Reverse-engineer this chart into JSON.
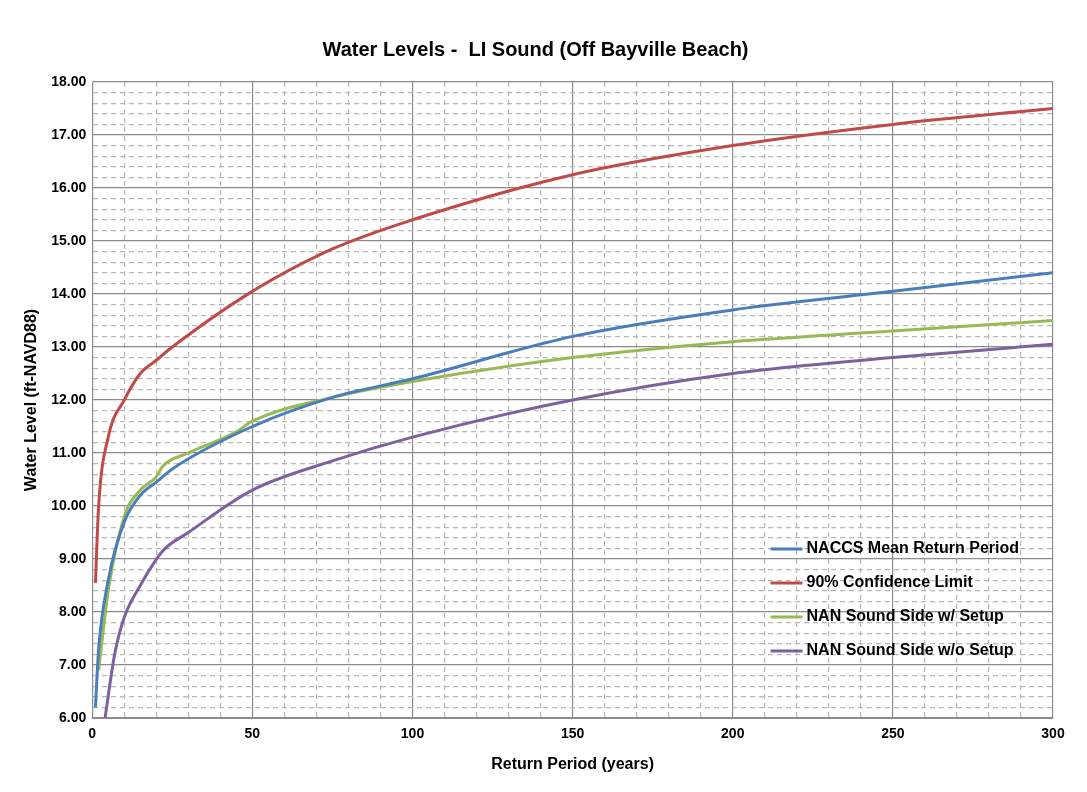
{
  "chart_data": {
    "type": "line",
    "title": "Water Levels -  LI Sound (Off Bayville Beach)",
    "xlabel": "Return Period (years)",
    "ylabel": "Water Level (ft-NAVD88)",
    "xlim": [
      0,
      300
    ],
    "ylim": [
      6,
      18
    ],
    "xticks": [
      0,
      {
        "value": 10,
        "label": null
      },
      {
        "value": 20,
        "label": null
      },
      {
        "value": 30,
        "label": null
      },
      {
        "value": 40,
        "label": null
      },
      50,
      {
        "value": 60,
        "label": null
      },
      {
        "value": 70,
        "label": null
      },
      {
        "value": 80,
        "label": null
      },
      {
        "value": 90,
        "label": null
      },
      100,
      {
        "value": 110,
        "label": null
      },
      {
        "value": 120,
        "label": null
      },
      {
        "value": 130,
        "label": null
      },
      {
        "value": 140,
        "label": null
      },
      150,
      {
        "value": 160,
        "label": null
      },
      {
        "value": 170,
        "label": null
      },
      {
        "value": 180,
        "label": null
      },
      {
        "value": 190,
        "label": null
      },
      200,
      {
        "value": 210,
        "label": null
      },
      {
        "value": 220,
        "label": null
      },
      {
        "value": 230,
        "label": null
      },
      {
        "value": 240,
        "label": null
      },
      250,
      {
        "value": 260,
        "label": null
      },
      {
        "value": 270,
        "label": null
      },
      {
        "value": 280,
        "label": null
      },
      {
        "value": 290,
        "label": null
      },
      300
    ],
    "yticks": [
      {
        "value": 6,
        "label": "6.00"
      },
      {
        "value": 6.2,
        "label": null
      },
      {
        "value": 6.4,
        "label": null
      },
      {
        "value": 6.6,
        "label": null
      },
      {
        "value": 6.8,
        "label": null
      },
      {
        "value": 7,
        "label": "7.00"
      },
      {
        "value": 7.2,
        "label": null
      },
      {
        "value": 7.4,
        "label": null
      },
      {
        "value": 7.6,
        "label": null
      },
      {
        "value": 7.8,
        "label": null
      },
      {
        "value": 8,
        "label": "8.00"
      },
      {
        "value": 8.2,
        "label": null
      },
      {
        "value": 8.4,
        "label": null
      },
      {
        "value": 8.6,
        "label": null
      },
      {
        "value": 8.8,
        "label": null
      },
      {
        "value": 9,
        "label": "9.00"
      },
      {
        "value": 9.2,
        "label": null
      },
      {
        "value": 9.4,
        "label": null
      },
      {
        "value": 9.6,
        "label": null
      },
      {
        "value": 9.8,
        "label": null
      },
      {
        "value": 10,
        "label": "10.00"
      },
      {
        "value": 10.2,
        "label": null
      },
      {
        "value": 10.4,
        "label": null
      },
      {
        "value": 10.6,
        "label": null
      },
      {
        "value": 10.8,
        "label": null
      },
      {
        "value": 11,
        "label": "11.00"
      },
      {
        "value": 11.2,
        "label": null
      },
      {
        "value": 11.4,
        "label": null
      },
      {
        "value": 11.6,
        "label": null
      },
      {
        "value": 11.8,
        "label": null
      },
      {
        "value": 12,
        "label": "12.00"
      },
      {
        "value": 12.2,
        "label": null
      },
      {
        "value": 12.4,
        "label": null
      },
      {
        "value": 12.6,
        "label": null
      },
      {
        "value": 12.8,
        "label": null
      },
      {
        "value": 13,
        "label": "13.00"
      },
      {
        "value": 13.2,
        "label": null
      },
      {
        "value": 13.4,
        "label": null
      },
      {
        "value": 13.6,
        "label": null
      },
      {
        "value": 13.8,
        "label": null
      },
      {
        "value": 14,
        "label": "14.00"
      },
      {
        "value": 14.2,
        "label": null
      },
      {
        "value": 14.4,
        "label": null
      },
      {
        "value": 14.6,
        "label": null
      },
      {
        "value": 14.8,
        "label": null
      },
      {
        "value": 15,
        "label": "15.00"
      },
      {
        "value": 15.2,
        "label": null
      },
      {
        "value": 15.4,
        "label": null
      },
      {
        "value": 15.6,
        "label": null
      },
      {
        "value": 15.8,
        "label": null
      },
      {
        "value": 16,
        "label": "16.00"
      },
      {
        "value": 16.2,
        "label": null
      },
      {
        "value": 16.4,
        "label": null
      },
      {
        "value": 16.6,
        "label": null
      },
      {
        "value": 16.8,
        "label": null
      },
      {
        "value": 17,
        "label": "17.00"
      },
      {
        "value": 17.2,
        "label": null
      },
      {
        "value": 17.4,
        "label": null
      },
      {
        "value": 17.6,
        "label": null
      },
      {
        "value": 17.8,
        "label": null
      },
      {
        "value": 18,
        "label": "18.00"
      }
    ],
    "grid": true,
    "legend": "bottom right",
    "marker": "none",
    "line_style": "solid",
    "series": [
      {
        "name": "NACCS Mean Return Period",
        "color": "#4a7ebb",
        "x": [
          1,
          2,
          5,
          10,
          15,
          20,
          25,
          50,
          75,
          100,
          150,
          200,
          250,
          300
        ],
        "values": [
          6.2,
          7.3,
          8.6,
          9.7,
          10.2,
          10.45,
          10.7,
          11.5,
          12.05,
          12.4,
          13.2,
          13.7,
          14.05,
          14.4
        ]
      },
      {
        "name": "90% Confidence Limit",
        "color": "#be4b48",
        "x": [
          1,
          2,
          5,
          10,
          15,
          20,
          25,
          50,
          75,
          100,
          150,
          200,
          250,
          300
        ],
        "values": [
          8.55,
          10,
          11.3,
          12,
          12.5,
          12.75,
          13,
          14.05,
          14.85,
          15.4,
          16.25,
          16.8,
          17.2,
          17.5
        ]
      },
      {
        "name": "NAN Sound Side w/ Setup",
        "color": "#98b954",
        "x": [
          2,
          5,
          10,
          15,
          20,
          22,
          30,
          45,
          50,
          75,
          100,
          150,
          200,
          250,
          300
        ],
        "values": [
          6.9,
          8.4,
          9.8,
          10.3,
          10.55,
          10.75,
          11,
          11.4,
          11.6,
          12.05,
          12.35,
          12.8,
          13.1,
          13.3,
          13.5
        ]
      },
      {
        "name": "NAN Sound Side w/o Setup",
        "color": "#7d60a0",
        "x": [
          4,
          7,
          10,
          15,
          22,
          30,
          50,
          75,
          100,
          150,
          200,
          250,
          300
        ],
        "values": [
          6,
          7.2,
          7.9,
          8.5,
          9.15,
          9.5,
          10.3,
          10.85,
          11.3,
          12,
          12.5,
          12.8,
          13.05
        ]
      }
    ]
  }
}
